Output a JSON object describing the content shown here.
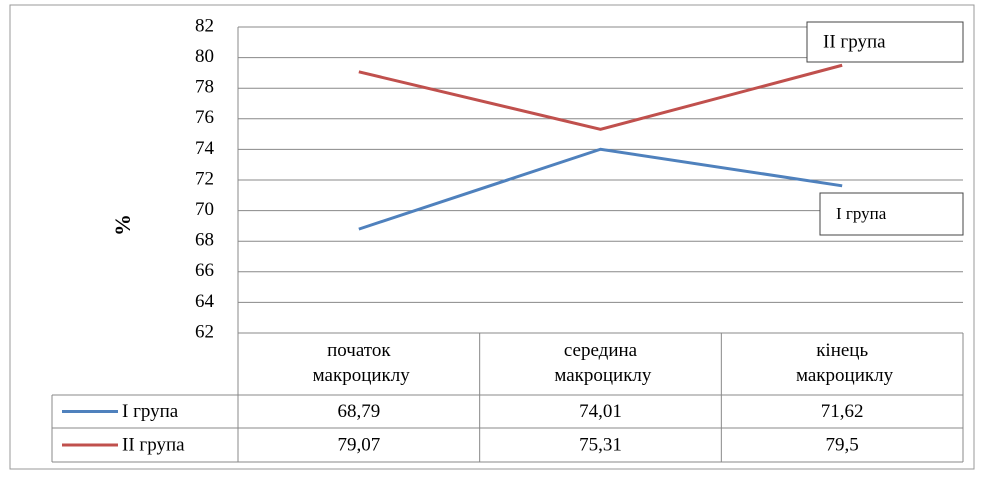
{
  "chart_data": {
    "type": "line",
    "y_label": "%",
    "categories": [
      "початок макроциклу",
      "середина макроциклу",
      "кінець макроциклу"
    ],
    "series": [
      {
        "name": "I група",
        "color": "#4f81bd",
        "values": [
          68.79,
          74.01,
          71.62
        ],
        "value_labels": [
          "68,79",
          "74,01",
          "71,62"
        ]
      },
      {
        "name": "II група",
        "color": "#c0504d",
        "values": [
          79.07,
          75.31,
          79.5
        ],
        "value_labels": [
          "79,07",
          "75,31",
          "79,5"
        ]
      }
    ],
    "ylim": [
      62,
      82
    ],
    "yticks": [
      62,
      64,
      66,
      68,
      70,
      72,
      74,
      76,
      78,
      80,
      82
    ],
    "grid": true
  }
}
